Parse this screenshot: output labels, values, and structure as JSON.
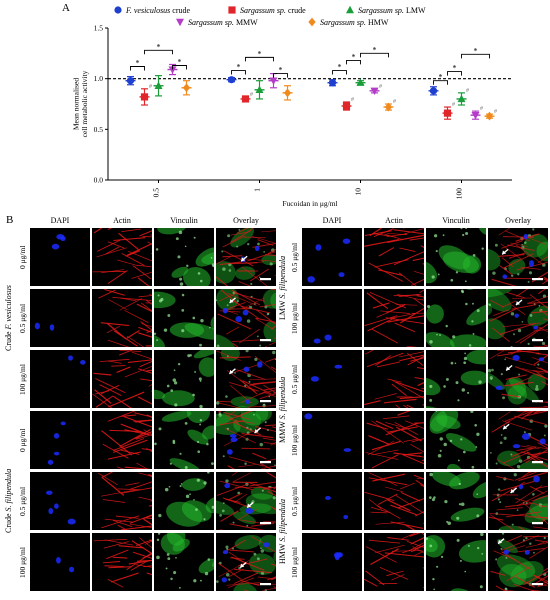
{
  "panel_a": "A",
  "panel_b": "B",
  "chart_data": {
    "type": "scatter",
    "ylabel_line1": "Mean normalised",
    "ylabel_line2": "cell metabolic activity",
    "xlabel": "Fucoidan in μg/ml",
    "categories": [
      "0.5",
      "1",
      "10",
      "100"
    ],
    "yticks": [
      "0.0",
      "0.5",
      "1.0",
      "1.5"
    ],
    "ylim": [
      0,
      1.5
    ],
    "reference_line": 1.0,
    "legend_placement": "top",
    "series": [
      {
        "name": "F. vesiculosus crude",
        "name_italic": "F. vesiculosus",
        "name_plain": " crude",
        "color": "#1f3fcf",
        "marker": "circle",
        "values": [
          0.98,
          0.99,
          0.96,
          0.88
        ],
        "error": [
          0.04,
          0.02,
          0.03,
          0.04
        ]
      },
      {
        "name": "Sargassum sp. crude",
        "name_italic": "Sargassum sp.",
        "name_plain": " crude",
        "color": "#e0262a",
        "marker": "square",
        "values": [
          0.82,
          0.8,
          0.73,
          0.66
        ],
        "error": [
          0.08,
          0.02,
          0.04,
          0.06
        ]
      },
      {
        "name": "Sargassum sp. LMW",
        "name_italic": "Sargassum sp.",
        "name_plain": " LMW",
        "color": "#1a9e3a",
        "marker": "triangle-up",
        "values": [
          0.93,
          0.89,
          0.96,
          0.8
        ],
        "error": [
          0.1,
          0.09,
          0.02,
          0.06
        ]
      },
      {
        "name": "Sargassum sp. MMW",
        "name_italic": "Sargassum sp.",
        "name_plain": " MMW",
        "color": "#b43cc8",
        "marker": "triangle-down",
        "values": [
          1.09,
          0.98,
          0.88,
          0.64
        ],
        "error": [
          0.05,
          0.07,
          0.02,
          0.04
        ]
      },
      {
        "name": "Sargassum sp. HMW",
        "name_italic": "Sargassum sp.",
        "name_plain": " HMW",
        "color": "#f08a1c",
        "marker": "diamond",
        "values": [
          0.91,
          0.86,
          0.72,
          0.63
        ],
        "error": [
          0.07,
          0.07,
          0.03,
          0.02
        ]
      }
    ],
    "hash_marks": [
      {
        "group": 0,
        "series": 1
      },
      {
        "group": 1,
        "series": 1
      },
      {
        "group": 2,
        "series": 1
      },
      {
        "group": 2,
        "series": 3
      },
      {
        "group": 2,
        "series": 4
      },
      {
        "group": 3,
        "series": 1
      },
      {
        "group": 3,
        "series": 2
      },
      {
        "group": 3,
        "series": 3
      },
      {
        "group": 3,
        "series": 4
      }
    ],
    "significance_label": "*",
    "hash_label": "#"
  },
  "micrograph": {
    "column_headers_left": [
      "DAPI",
      "Actin",
      "Vinculin",
      "Overlay"
    ],
    "column_headers_right": [
      "DAPI",
      "Actin",
      "Vinculin",
      "Overlay"
    ],
    "left_groups": [
      {
        "italic": "F. vesiculosus",
        "prefix": "Crude "
      },
      {
        "italic": "S. filipendula",
        "prefix": "Crude "
      }
    ],
    "left_rows": [
      "0 μg/ml",
      "0.5 μg/ml",
      "100 μg/ml",
      "0 μg/ml",
      "0.5 μg/ml",
      "100 μg/ml"
    ],
    "right_groups": [
      {
        "italic": "S. filipendula",
        "prefix": "LMW "
      },
      {
        "italic": "S. filipendula",
        "prefix": "MMW "
      },
      {
        "italic": "S. filipendula",
        "prefix": "HMW "
      }
    ],
    "right_rows": [
      "0.5 μg/ml",
      "100 μg/ml",
      "0.5 μg/ml",
      "100 μg/ml",
      "0.5 μg/ml",
      "100 μg/ml"
    ],
    "channel_colors": {
      "dapi": "#1a2cff",
      "actin": "#e01818",
      "vinculin": "#22b82a"
    }
  }
}
